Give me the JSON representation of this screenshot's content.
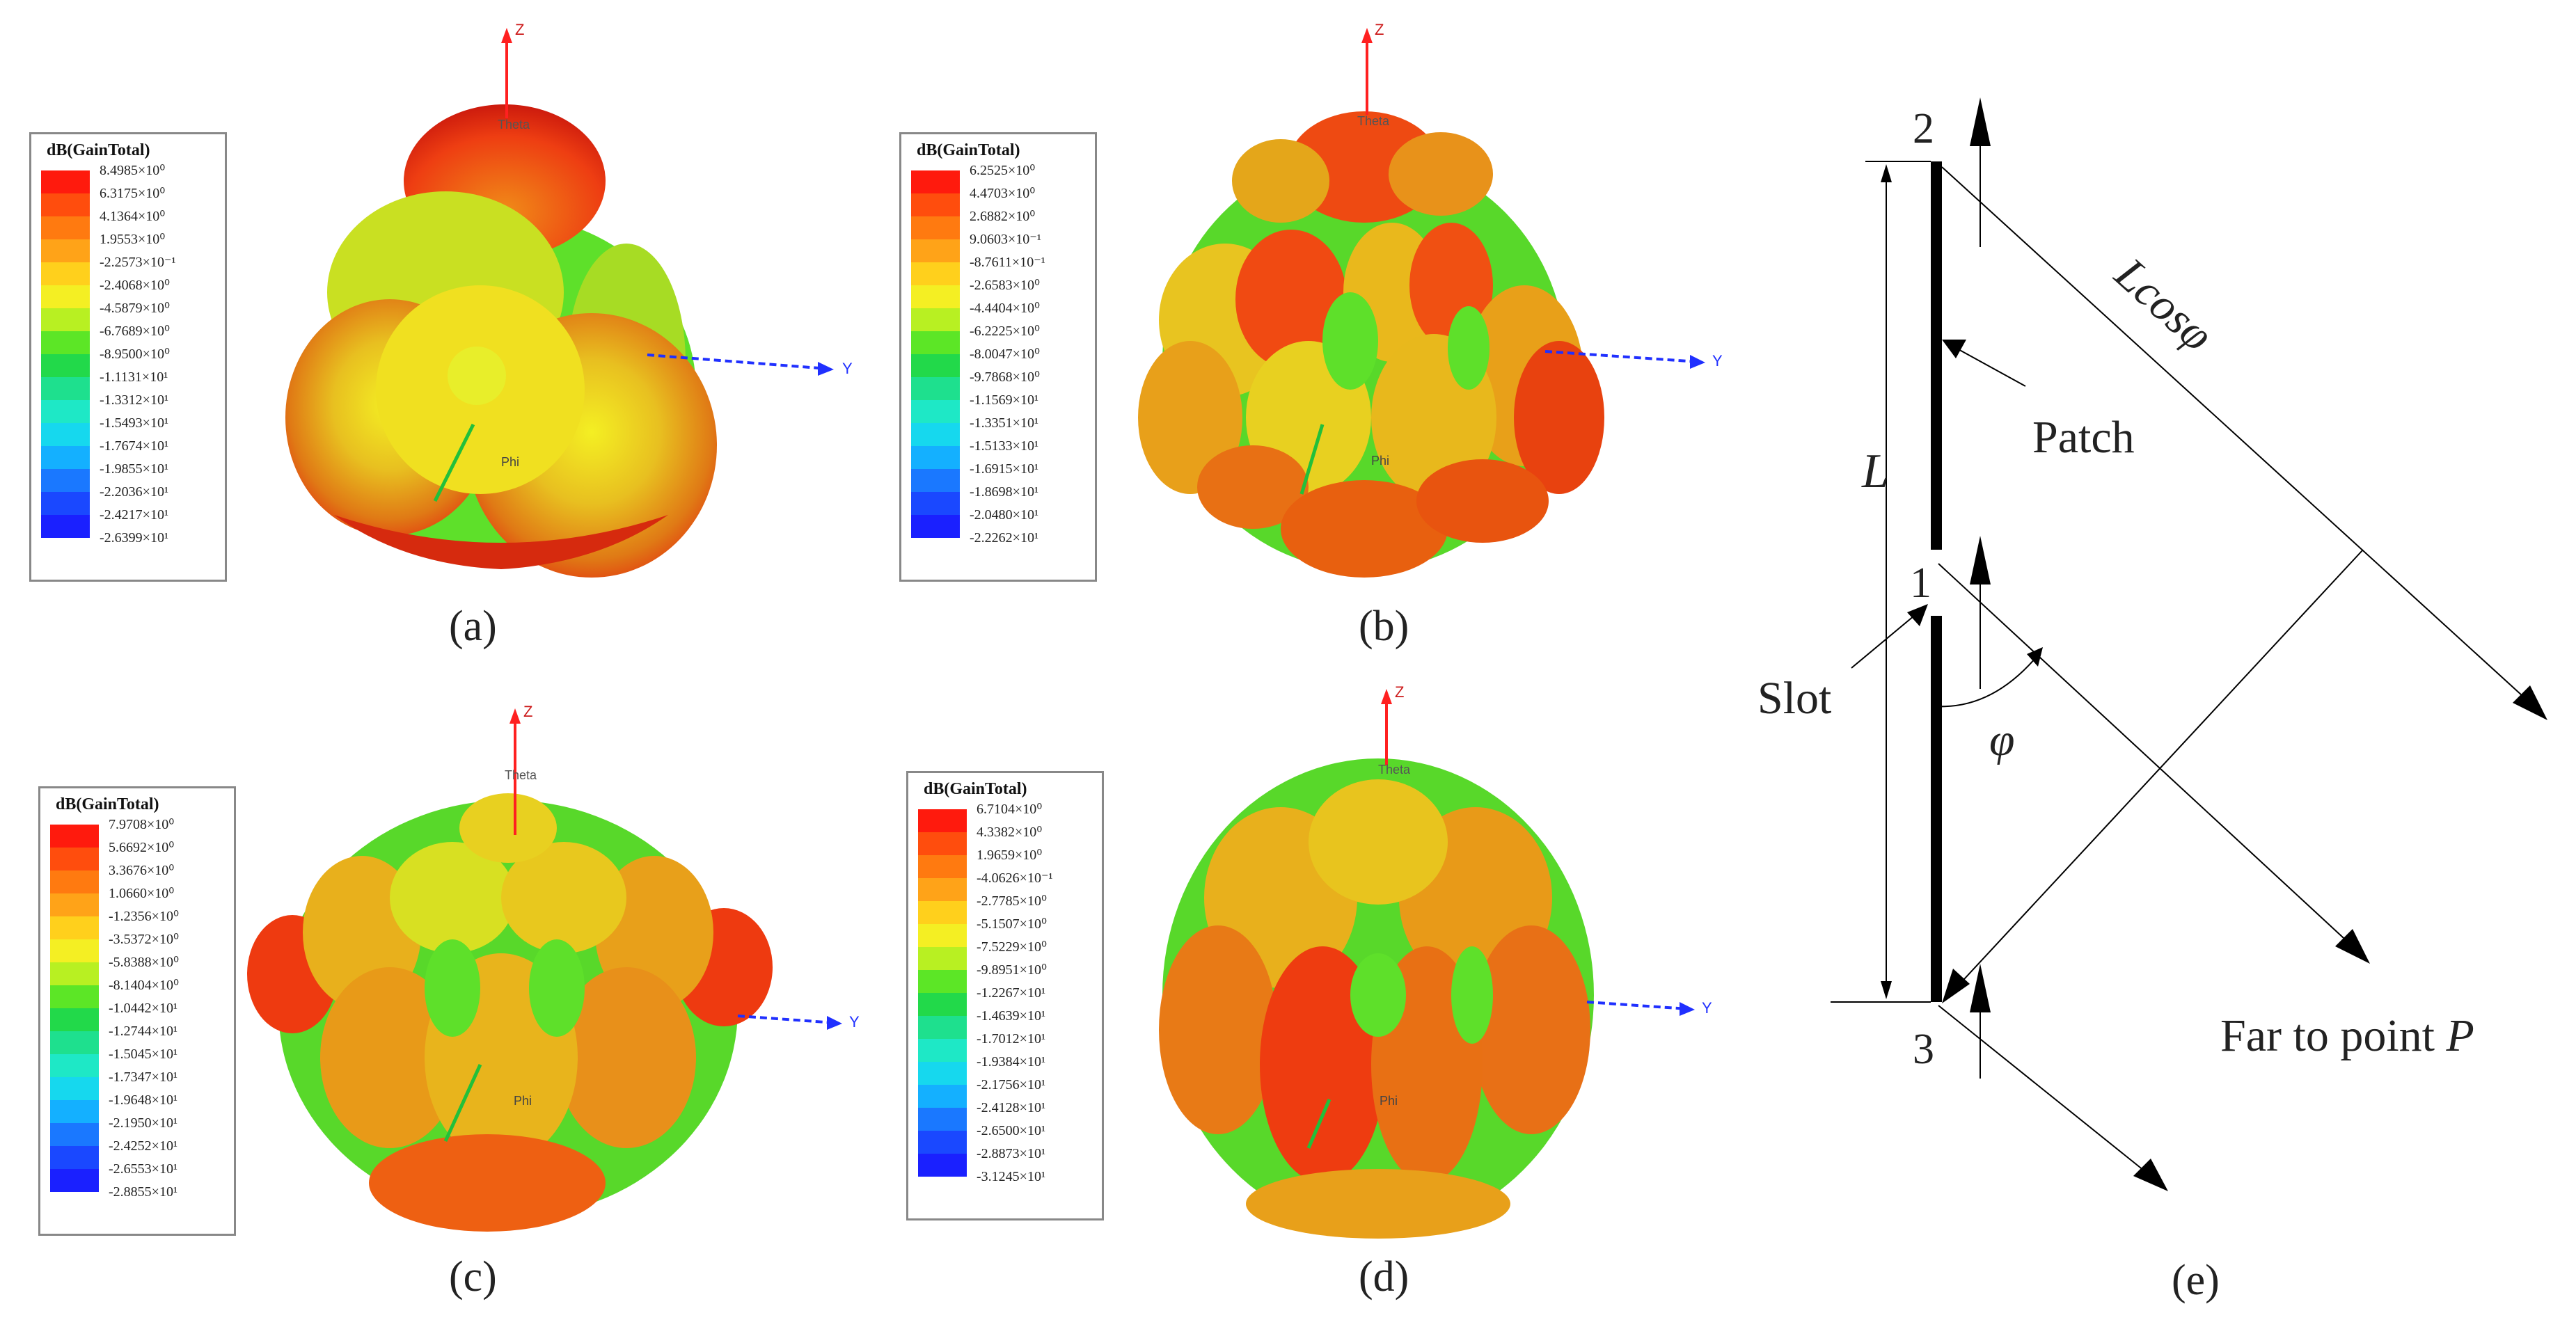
{
  "legend_title": "dB(GainTotal)",
  "legend_colors": [
    "#ff1a0d",
    "#ff4d0d",
    "#ff7a10",
    "#ffa318",
    "#ffd01c",
    "#f4ef23",
    "#b8f022",
    "#5ce626",
    "#22d94a",
    "#1ee08e",
    "#1ee8c6",
    "#16d8ee",
    "#14b0ff",
    "#1a78ff",
    "#1a48ff",
    "#1a20ff"
  ],
  "axis_labels": {
    "z": "Z",
    "y": "Y",
    "theta": "Theta",
    "phi": "Phi"
  },
  "panels": [
    {
      "caption": "(a)",
      "ticks": [
        "8.4985×10⁰",
        "6.3175×10⁰",
        "4.1364×10⁰",
        "1.9553×10⁰",
        "-2.2573×10⁻¹",
        "-2.4068×10⁰",
        "-4.5879×10⁰",
        "-6.7689×10⁰",
        "-8.9500×10⁰",
        "-1.1131×10¹",
        "-1.3312×10¹",
        "-1.5493×10¹",
        "-1.7674×10¹",
        "-1.9855×10¹",
        "-2.2036×10¹",
        "-2.4217×10¹",
        "-2.6399×10¹"
      ]
    },
    {
      "caption": "(b)",
      "ticks": [
        "6.2525×10⁰",
        "4.4703×10⁰",
        "2.6882×10⁰",
        "9.0603×10⁻¹",
        "-8.7611×10⁻¹",
        "-2.6583×10⁰",
        "-4.4404×10⁰",
        "-6.2225×10⁰",
        "-8.0047×10⁰",
        "-9.7868×10⁰",
        "-1.1569×10¹",
        "-1.3351×10¹",
        "-1.5133×10¹",
        "-1.6915×10¹",
        "-1.8698×10¹",
        "-2.0480×10¹",
        "-2.2262×10¹"
      ]
    },
    {
      "caption": "(c)",
      "ticks": [
        "7.9708×10⁰",
        "5.6692×10⁰",
        "3.3676×10⁰",
        "1.0660×10⁰",
        "-1.2356×10⁰",
        "-3.5372×10⁰",
        "-5.8388×10⁰",
        "-8.1404×10⁰",
        "-1.0442×10¹",
        "-1.2744×10¹",
        "-1.5045×10¹",
        "-1.7347×10¹",
        "-1.9648×10¹",
        "-2.1950×10¹",
        "-2.4252×10¹",
        "-2.6553×10¹",
        "-2.8855×10¹"
      ]
    },
    {
      "caption": "(d)",
      "ticks": [
        "6.7104×10⁰",
        "4.3382×10⁰",
        "1.9659×10⁰",
        "-4.0626×10⁻¹",
        "-2.7785×10⁰",
        "-5.1507×10⁰",
        "-7.5229×10⁰",
        "-9.8951×10⁰",
        "-1.2267×10¹",
        "-1.4639×10¹",
        "-1.7012×10¹",
        "-1.9384×10¹",
        "-2.1756×10¹",
        "-2.4128×10¹",
        "-2.6500×10¹",
        "-2.8873×10¹",
        "-3.1245×10¹"
      ]
    }
  ],
  "diagram": {
    "caption": "(e)",
    "node_top": "2",
    "node_mid": "1",
    "node_bottom": "3",
    "label_length": "L",
    "label_patch": "Patch",
    "label_slot": "Slot",
    "label_angle": "φ",
    "label_path_difference": "Lcosφ",
    "label_far_field": "Far to point ",
    "label_far_field_point": "P"
  }
}
